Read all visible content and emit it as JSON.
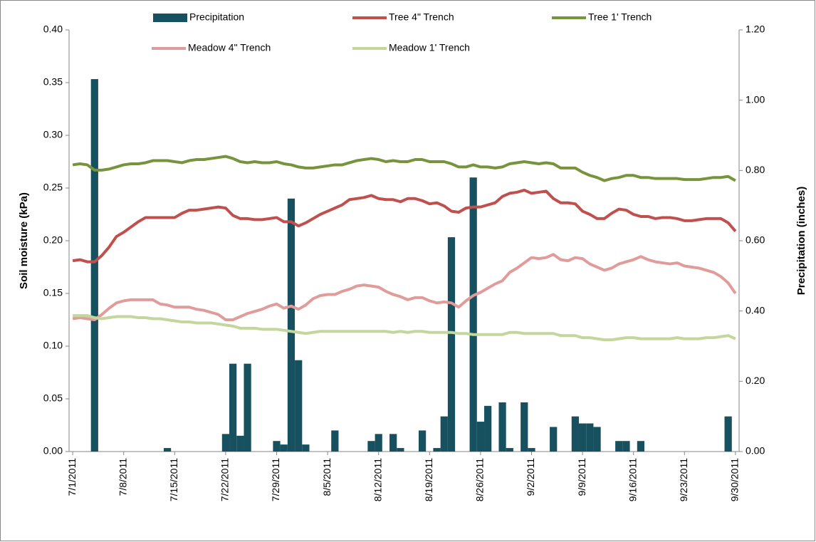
{
  "chart_data": {
    "type": "combo",
    "y_label": "Soil moisture (kPa)",
    "y2_label": "Precipitation (inches)",
    "legend": "top",
    "categories": [
      "7/1/2011",
      null,
      null,
      null,
      null,
      null,
      null,
      "7/8/2011",
      null,
      null,
      null,
      null,
      null,
      null,
      "7/15/2011",
      null,
      null,
      null,
      null,
      null,
      null,
      "7/22/2011",
      null,
      null,
      null,
      null,
      null,
      null,
      "7/29/2011",
      null,
      null,
      null,
      null,
      null,
      null,
      "8/5/2011",
      null,
      null,
      null,
      null,
      null,
      null,
      "8/12/2011",
      null,
      null,
      null,
      null,
      null,
      null,
      "8/19/2011",
      null,
      null,
      null,
      null,
      null,
      null,
      "8/26/2011",
      null,
      null,
      null,
      null,
      null,
      null,
      "9/2/2011",
      null,
      null,
      null,
      null,
      null,
      null,
      "9/9/2011",
      null,
      null,
      null,
      null,
      null,
      null,
      "9/16/2011",
      null,
      null,
      null,
      null,
      null,
      null,
      "9/23/2011",
      null,
      null,
      null,
      null,
      null,
      null,
      "9/30/2011"
    ],
    "ylim": [
      0,
      0.4
    ],
    "yticks": [
      {
        "value": 0,
        "label": "0.00"
      },
      0.05,
      {
        "value": 0.1,
        "label": "0.10"
      },
      0.15,
      {
        "value": 0.2,
        "label": "0.20"
      },
      0.25,
      {
        "value": 0.3,
        "label": "0.30"
      },
      0.35,
      {
        "value": 0.4,
        "label": "0.40"
      }
    ],
    "y2lim": [
      0,
      1.2
    ],
    "y2ticks": [
      {
        "value": 0,
        "label": "0.00"
      },
      {
        "value": 0.2,
        "label": "0.20"
      },
      {
        "value": 0.4,
        "label": "0.40"
      },
      {
        "value": 0.6,
        "label": "0.60"
      },
      {
        "value": 0.8,
        "label": "0.80"
      },
      {
        "value": 1.0,
        "label": "1.00"
      },
      {
        "value": 1.2,
        "label": "1.20"
      }
    ],
    "series": [
      {
        "name": "Precipitation",
        "type": "bar",
        "axis": "y2",
        "color": "#17505f",
        "values": [
          0,
          0,
          0,
          1.06,
          0,
          0,
          0,
          0,
          0,
          0,
          0,
          0,
          0,
          0.01,
          0,
          0,
          0,
          0,
          0,
          0,
          0,
          0.05,
          0.25,
          0.045,
          0.25,
          0,
          0,
          0,
          0.03,
          0.02,
          0.72,
          0.26,
          0.02,
          0,
          0,
          0,
          0.06,
          0,
          0,
          0,
          0,
          0.03,
          0.05,
          0,
          0.05,
          0.01,
          0,
          0,
          0.06,
          0,
          0.01,
          0.1,
          0.61,
          0,
          0,
          0.78,
          0.085,
          0.13,
          0,
          0.14,
          0.01,
          0,
          0.14,
          0.01,
          0,
          0,
          0.07,
          0,
          0,
          0.1,
          0.08,
          0.08,
          0.07,
          0,
          0,
          0.03,
          0.03,
          0,
          0.03,
          0,
          0,
          0,
          0,
          0,
          0,
          0,
          0,
          0,
          0,
          0,
          0.1,
          0
        ]
      },
      {
        "name": "Tree 4\" Trench",
        "type": "line",
        "color": "#c0504d",
        "values": [
          0.181,
          0.182,
          0.18,
          0.18,
          0.186,
          0.194,
          0.204,
          0.208,
          0.213,
          0.218,
          0.222,
          0.222,
          0.222,
          0.222,
          0.222,
          0.226,
          0.229,
          0.229,
          0.23,
          0.231,
          0.232,
          0.231,
          0.224,
          0.221,
          0.221,
          0.22,
          0.22,
          0.221,
          0.222,
          0.218,
          0.218,
          0.214,
          0.217,
          0.221,
          0.225,
          0.228,
          0.231,
          0.234,
          0.239,
          0.24,
          0.241,
          0.243,
          0.24,
          0.239,
          0.239,
          0.237,
          0.24,
          0.24,
          0.238,
          0.235,
          0.236,
          0.233,
          0.228,
          0.227,
          0.231,
          0.232,
          0.232,
          0.234,
          0.236,
          0.242,
          0.245,
          0.246,
          0.248,
          0.245,
          0.246,
          0.247,
          0.24,
          0.236,
          0.236,
          0.235,
          0.228,
          0.225,
          0.221,
          0.221,
          0.226,
          0.23,
          0.229,
          0.225,
          0.223,
          0.223,
          0.221,
          0.222,
          0.222,
          0.221,
          0.219,
          0.219,
          0.22,
          0.221,
          0.221,
          0.221,
          0.217,
          0.209
        ]
      },
      {
        "name": "Tree 1' Trench",
        "type": "line",
        "color": "#77933c",
        "values": [
          0.272,
          0.273,
          0.272,
          0.267,
          0.267,
          0.268,
          0.27,
          0.272,
          0.273,
          0.273,
          0.274,
          0.276,
          0.276,
          0.276,
          0.275,
          0.274,
          0.276,
          0.277,
          0.277,
          0.278,
          0.279,
          0.28,
          0.278,
          0.275,
          0.274,
          0.275,
          0.274,
          0.274,
          0.275,
          0.273,
          0.272,
          0.27,
          0.269,
          0.269,
          0.27,
          0.271,
          0.272,
          0.272,
          0.274,
          0.276,
          0.277,
          0.278,
          0.277,
          0.275,
          0.276,
          0.275,
          0.275,
          0.277,
          0.277,
          0.275,
          0.275,
          0.275,
          0.273,
          0.27,
          0.27,
          0.272,
          0.27,
          0.27,
          0.269,
          0.27,
          0.273,
          0.274,
          0.275,
          0.274,
          0.273,
          0.274,
          0.273,
          0.269,
          0.269,
          0.269,
          0.265,
          0.262,
          0.26,
          0.257,
          0.259,
          0.26,
          0.262,
          0.262,
          0.26,
          0.26,
          0.259,
          0.259,
          0.259,
          0.259,
          0.258,
          0.258,
          0.258,
          0.259,
          0.26,
          0.26,
          0.261,
          0.257
        ]
      },
      {
        "name": "Meadow 4\" Trench",
        "type": "line",
        "color": "#e09c9a",
        "values": [
          0.126,
          0.127,
          0.126,
          0.125,
          0.13,
          0.136,
          0.141,
          0.143,
          0.144,
          0.144,
          0.144,
          0.144,
          0.14,
          0.139,
          0.137,
          0.137,
          0.137,
          0.135,
          0.134,
          0.132,
          0.13,
          0.125,
          0.125,
          0.128,
          0.131,
          0.133,
          0.135,
          0.138,
          0.14,
          0.136,
          0.138,
          0.135,
          0.139,
          0.145,
          0.148,
          0.149,
          0.149,
          0.152,
          0.154,
          0.157,
          0.158,
          0.157,
          0.156,
          0.152,
          0.149,
          0.147,
          0.144,
          0.146,
          0.146,
          0.143,
          0.141,
          0.142,
          0.141,
          0.137,
          0.143,
          0.148,
          0.151,
          0.155,
          0.159,
          0.162,
          0.17,
          0.174,
          0.179,
          0.184,
          0.183,
          0.184,
          0.187,
          0.182,
          0.181,
          0.184,
          0.183,
          0.178,
          0.175,
          0.172,
          0.174,
          0.178,
          0.18,
          0.182,
          0.185,
          0.182,
          0.18,
          0.179,
          0.178,
          0.179,
          0.176,
          0.175,
          0.174,
          0.172,
          0.17,
          0.166,
          0.16,
          0.15
        ]
      },
      {
        "name": "Meadow 1' Trench",
        "type": "line",
        "color": "#c3d69b",
        "values": [
          0.129,
          0.129,
          0.129,
          0.127,
          0.126,
          0.127,
          0.128,
          0.128,
          0.128,
          0.127,
          0.127,
          0.126,
          0.126,
          0.125,
          0.124,
          0.123,
          0.123,
          0.122,
          0.122,
          0.122,
          0.121,
          0.12,
          0.119,
          0.117,
          0.117,
          0.117,
          0.116,
          0.116,
          0.116,
          0.115,
          0.114,
          0.113,
          0.112,
          0.113,
          0.114,
          0.114,
          0.114,
          0.114,
          0.114,
          0.114,
          0.114,
          0.114,
          0.114,
          0.114,
          0.113,
          0.114,
          0.113,
          0.114,
          0.114,
          0.113,
          0.113,
          0.113,
          0.113,
          0.112,
          0.112,
          0.111,
          0.111,
          0.111,
          0.111,
          0.111,
          0.113,
          0.113,
          0.112,
          0.112,
          0.112,
          0.112,
          0.112,
          0.11,
          0.11,
          0.11,
          0.108,
          0.108,
          0.107,
          0.106,
          0.106,
          0.107,
          0.108,
          0.108,
          0.107,
          0.107,
          0.107,
          0.107,
          0.107,
          0.108,
          0.107,
          0.107,
          0.107,
          0.108,
          0.108,
          0.109,
          0.11,
          0.107
        ]
      }
    ]
  }
}
